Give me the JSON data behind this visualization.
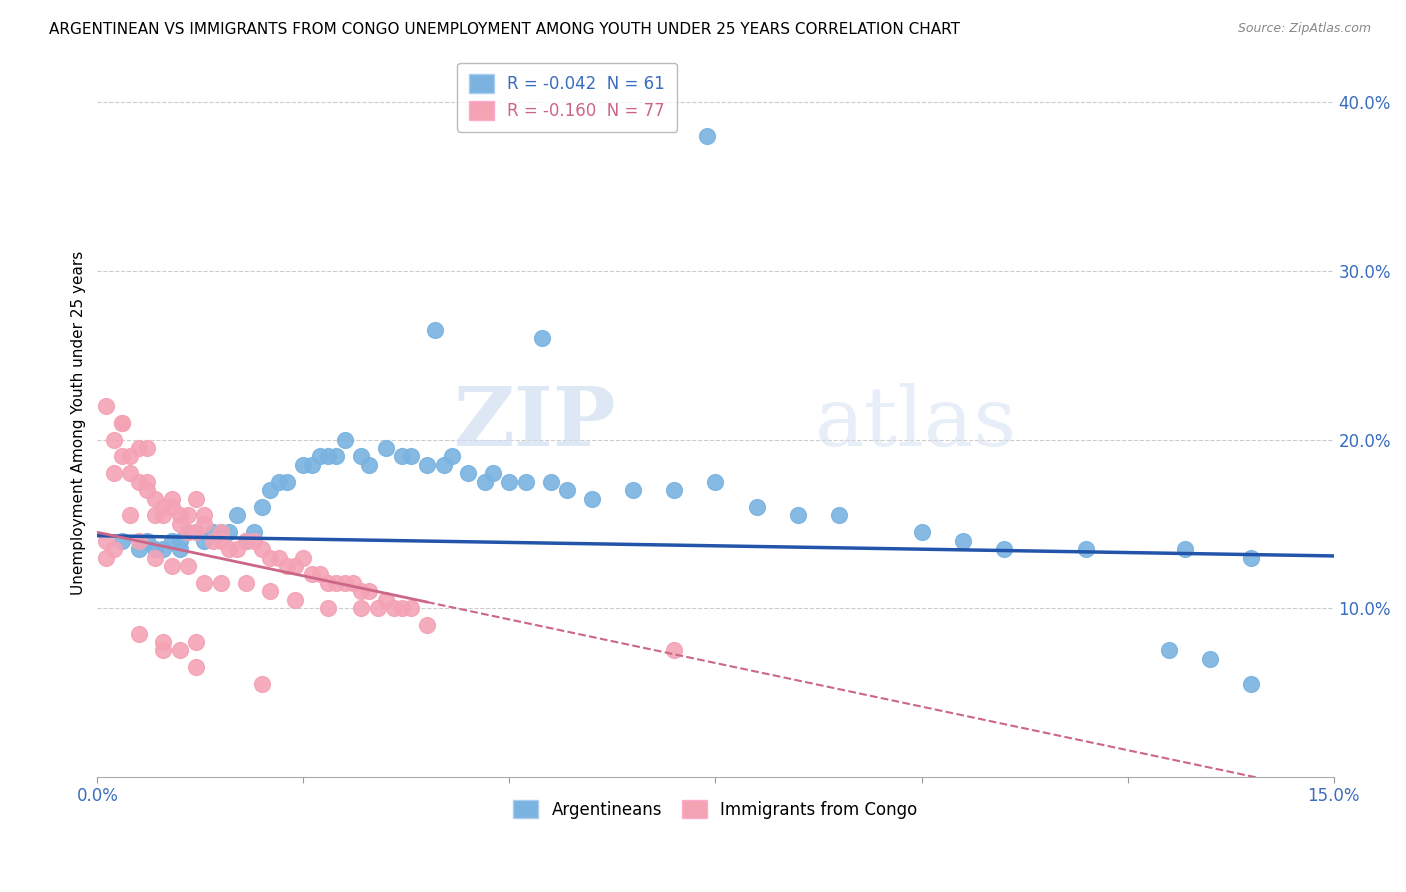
{
  "title": "ARGENTINEAN VS IMMIGRANTS FROM CONGO UNEMPLOYMENT AMONG YOUTH UNDER 25 YEARS CORRELATION CHART",
  "source": "Source: ZipAtlas.com",
  "ylabel": "Unemployment Among Youth under 25 years",
  "xlim": [
    0.0,
    0.15
  ],
  "ylim": [
    0.0,
    0.42
  ],
  "xticks": [
    0.0,
    0.025,
    0.05,
    0.075,
    0.1,
    0.125,
    0.15
  ],
  "xticklabels": [
    "0.0%",
    "",
    "",
    "",
    "",
    "",
    "15.0%"
  ],
  "yticks_right": [
    0.1,
    0.2,
    0.3,
    0.4
  ],
  "ytick_labels_right": [
    "10.0%",
    "20.0%",
    "30.0%",
    "40.0%"
  ],
  "blue_R": -0.042,
  "blue_N": 61,
  "pink_R": -0.16,
  "pink_N": 77,
  "blue_color": "#7ab3e0",
  "pink_color": "#f4a3b5",
  "blue_line_color": "#2255aa",
  "pink_line_color": "#cc6688",
  "legend_label_blue": "Argentineans",
  "legend_label_pink": "Immigrants from Congo",
  "watermark_zip": "ZIP",
  "watermark_atlas": "atlas",
  "blue_scatter_x": [
    0.003,
    0.005,
    0.006,
    0.007,
    0.008,
    0.009,
    0.01,
    0.01,
    0.011,
    0.012,
    0.013,
    0.014,
    0.015,
    0.016,
    0.017,
    0.018,
    0.019,
    0.02,
    0.021,
    0.022,
    0.023,
    0.025,
    0.026,
    0.027,
    0.028,
    0.029,
    0.03,
    0.032,
    0.033,
    0.035,
    0.037,
    0.038,
    0.04,
    0.042,
    0.043,
    0.045,
    0.047,
    0.048,
    0.05,
    0.052,
    0.055,
    0.057,
    0.06,
    0.065,
    0.07,
    0.075,
    0.08,
    0.085,
    0.09,
    0.1,
    0.105,
    0.11,
    0.12,
    0.13,
    0.135,
    0.14,
    0.041,
    0.054,
    0.074,
    0.132,
    0.14
  ],
  "blue_scatter_y": [
    0.14,
    0.135,
    0.14,
    0.135,
    0.135,
    0.14,
    0.135,
    0.14,
    0.145,
    0.145,
    0.14,
    0.145,
    0.145,
    0.145,
    0.155,
    0.14,
    0.145,
    0.16,
    0.17,
    0.175,
    0.175,
    0.185,
    0.185,
    0.19,
    0.19,
    0.19,
    0.2,
    0.19,
    0.185,
    0.195,
    0.19,
    0.19,
    0.185,
    0.185,
    0.19,
    0.18,
    0.175,
    0.18,
    0.175,
    0.175,
    0.175,
    0.17,
    0.165,
    0.17,
    0.17,
    0.175,
    0.16,
    0.155,
    0.155,
    0.145,
    0.14,
    0.135,
    0.135,
    0.075,
    0.07,
    0.055,
    0.265,
    0.26,
    0.38,
    0.135,
    0.13
  ],
  "pink_scatter_x": [
    0.001,
    0.001,
    0.002,
    0.002,
    0.003,
    0.003,
    0.004,
    0.004,
    0.005,
    0.005,
    0.006,
    0.006,
    0.007,
    0.007,
    0.008,
    0.008,
    0.009,
    0.009,
    0.01,
    0.01,
    0.011,
    0.011,
    0.012,
    0.012,
    0.013,
    0.013,
    0.014,
    0.015,
    0.015,
    0.016,
    0.017,
    0.018,
    0.019,
    0.02,
    0.021,
    0.022,
    0.023,
    0.024,
    0.025,
    0.026,
    0.027,
    0.028,
    0.029,
    0.03,
    0.031,
    0.032,
    0.033,
    0.034,
    0.035,
    0.036,
    0.037,
    0.038,
    0.04,
    0.005,
    0.007,
    0.009,
    0.011,
    0.013,
    0.015,
    0.018,
    0.021,
    0.024,
    0.028,
    0.032,
    0.005,
    0.008,
    0.012,
    0.001,
    0.002,
    0.003,
    0.004,
    0.006,
    0.008,
    0.01,
    0.012,
    0.02,
    0.07
  ],
  "pink_scatter_y": [
    0.13,
    0.14,
    0.135,
    0.18,
    0.19,
    0.21,
    0.18,
    0.19,
    0.175,
    0.195,
    0.17,
    0.175,
    0.155,
    0.165,
    0.155,
    0.16,
    0.16,
    0.165,
    0.15,
    0.155,
    0.145,
    0.155,
    0.145,
    0.165,
    0.15,
    0.155,
    0.14,
    0.14,
    0.145,
    0.135,
    0.135,
    0.14,
    0.14,
    0.135,
    0.13,
    0.13,
    0.125,
    0.125,
    0.13,
    0.12,
    0.12,
    0.115,
    0.115,
    0.115,
    0.115,
    0.11,
    0.11,
    0.1,
    0.105,
    0.1,
    0.1,
    0.1,
    0.09,
    0.14,
    0.13,
    0.125,
    0.125,
    0.115,
    0.115,
    0.115,
    0.11,
    0.105,
    0.1,
    0.1,
    0.085,
    0.075,
    0.065,
    0.22,
    0.2,
    0.21,
    0.155,
    0.195,
    0.08,
    0.075,
    0.08,
    0.055,
    0.075
  ]
}
